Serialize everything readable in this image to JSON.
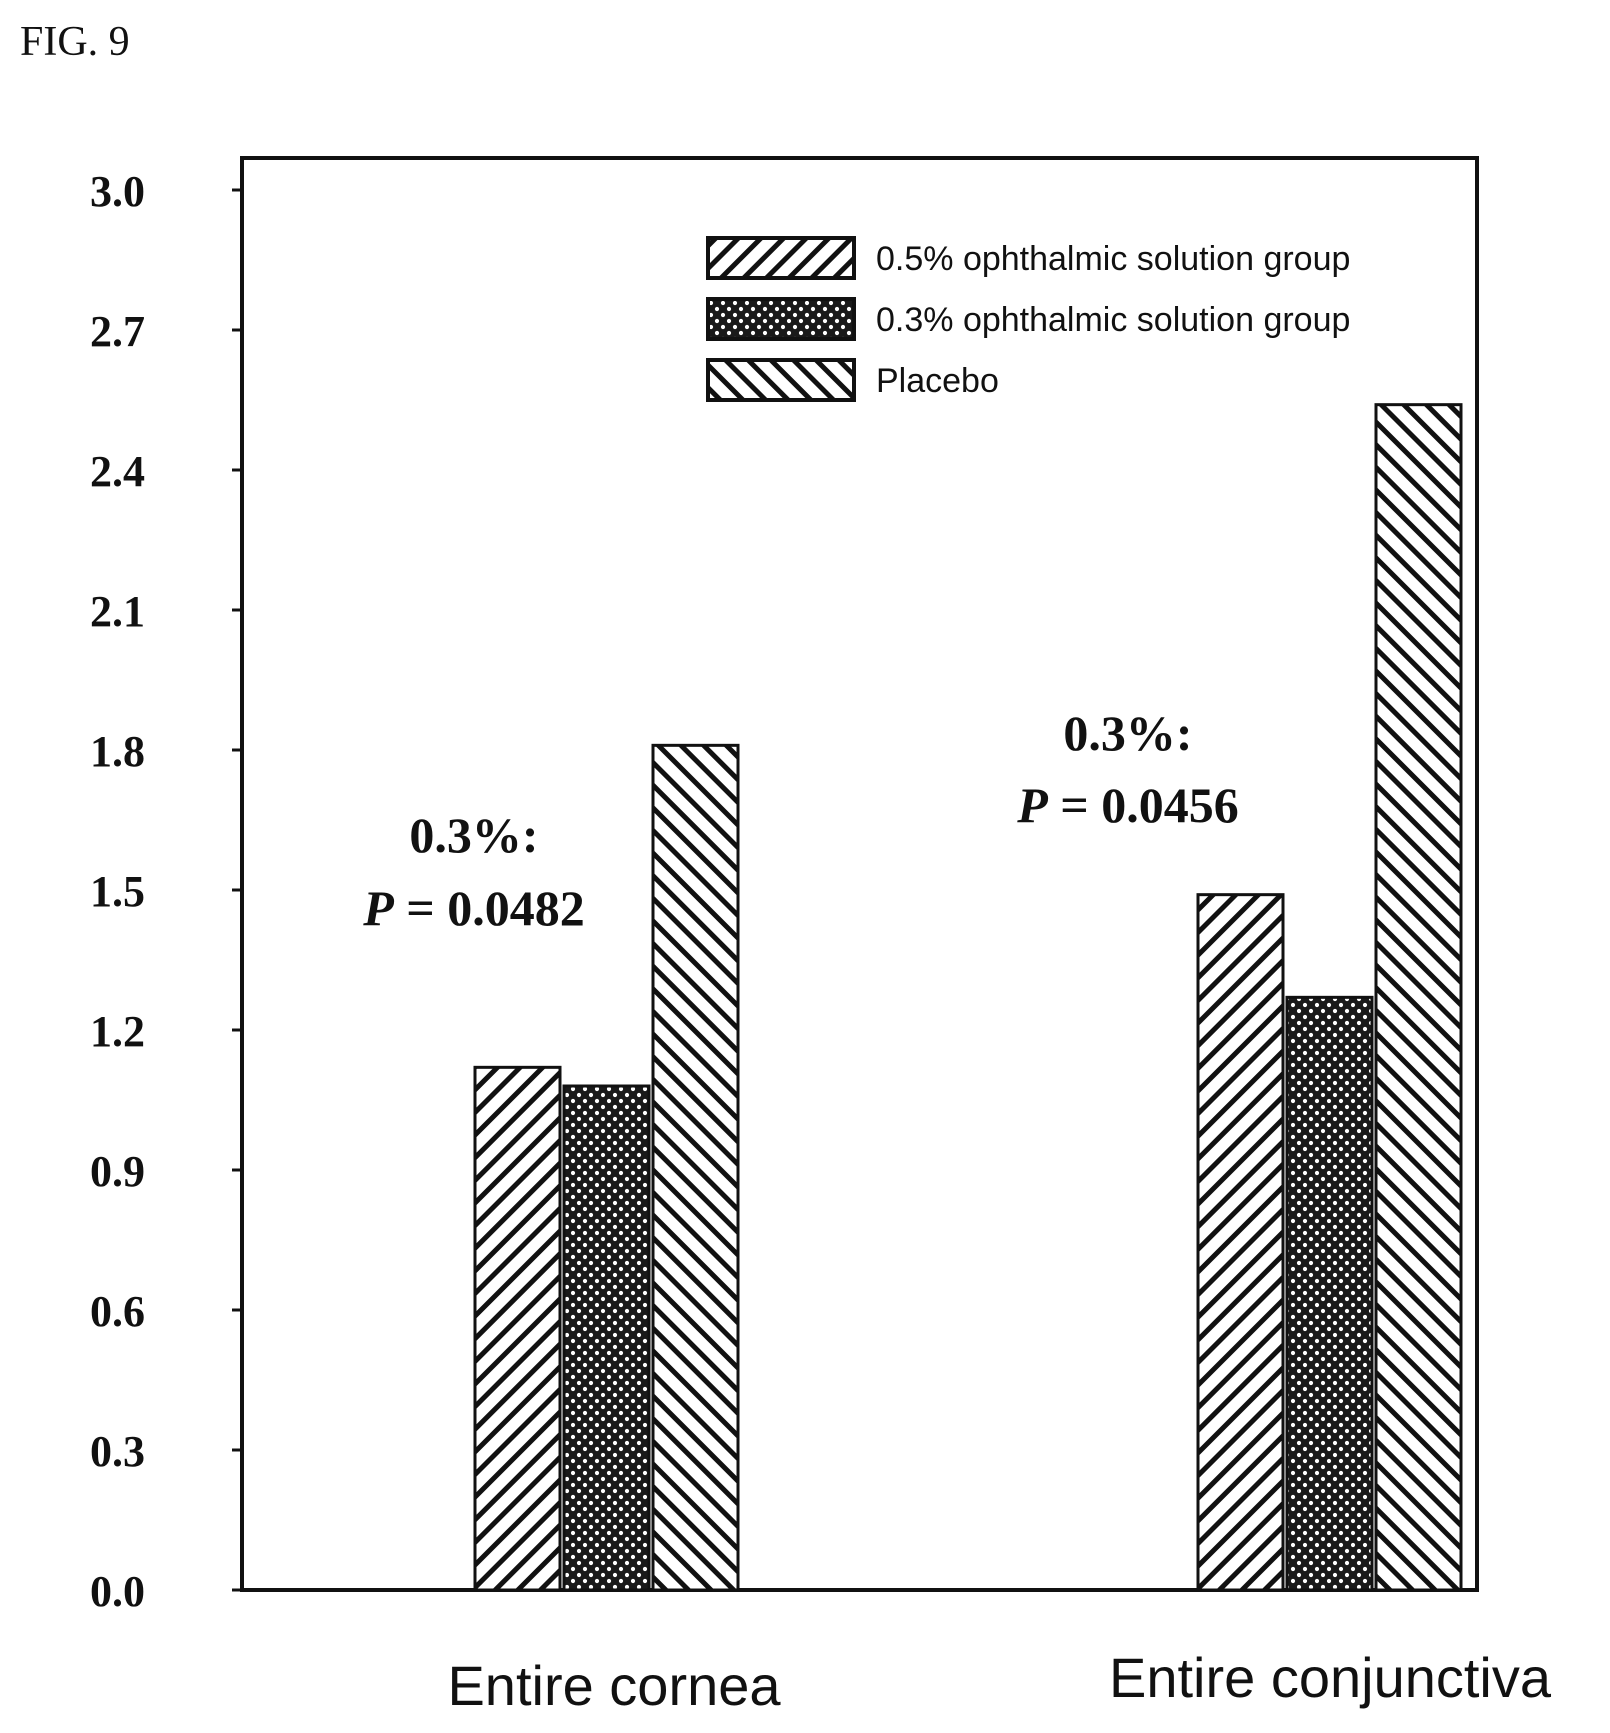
{
  "figure_label": "FIG. 9",
  "chart_data": {
    "type": "bar",
    "categories": [
      "Entire cornea",
      "Entire conjunctiva"
    ],
    "series": [
      {
        "name": "0.5% ophthalmic solution group",
        "values": [
          1.12,
          1.49
        ],
        "pattern": "hatch-forward"
      },
      {
        "name": "0.3% ophthalmic solution group",
        "values": [
          1.08,
          1.27
        ],
        "pattern": "crosshatch-dots"
      },
      {
        "name": "Placebo",
        "values": [
          1.81,
          2.54
        ],
        "pattern": "hatch-back"
      }
    ],
    "ylim": [
      0.0,
      3.0
    ],
    "yticks": [
      "0.0",
      "0.3",
      "0.6",
      "0.9",
      "1.2",
      "1.5",
      "1.8",
      "2.1",
      "2.4",
      "2.7",
      "3.0"
    ],
    "legend_position": "top-right",
    "grid": false,
    "annotations": [
      {
        "category": "Entire cornea",
        "line1": "0.3%:",
        "line2_italic": "P",
        "line2_rest": " = 0.0482"
      },
      {
        "category": "Entire conjunctiva",
        "line1": "0.3%:",
        "line2_italic": "P",
        "line2_rest": " = 0.0456"
      }
    ],
    "colors": {
      "ink": "#111111",
      "background": "#ffffff"
    }
  }
}
